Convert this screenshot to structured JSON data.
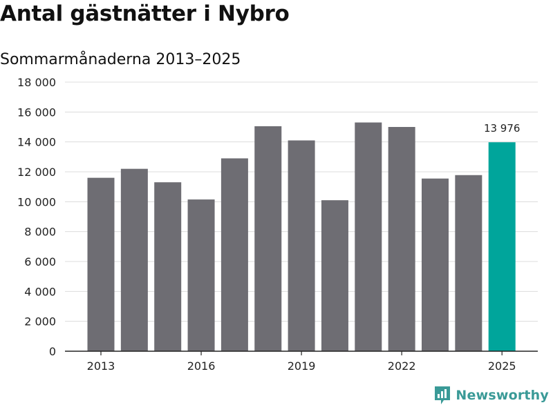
{
  "title": "Antal gästnätter i Nybro",
  "subtitle": "Sommarmånaderna 2013–2025",
  "brand": {
    "name": "Newsworthy",
    "color": "#3a9a97"
  },
  "colors": {
    "bar": "#6e6d73",
    "highlight": "#00a59b",
    "grid": "#dcdcdc",
    "axis": "#222222"
  },
  "chart_data": {
    "type": "bar",
    "title": "Antal gästnätter i Nybro",
    "subtitle": "Sommarmånaderna 2013–2025",
    "categories": [
      "2013",
      "2014",
      "2015",
      "2016",
      "2017",
      "2018",
      "2019",
      "2020",
      "2021",
      "2022",
      "2023",
      "2024",
      "2025"
    ],
    "values": [
      11600,
      12200,
      11300,
      10150,
      12900,
      15050,
      14100,
      10100,
      15300,
      15000,
      11550,
      11780,
      13976
    ],
    "x_tick_labels": [
      "2013",
      "2016",
      "2019",
      "2022",
      "2025"
    ],
    "y_ticks": [
      0,
      2000,
      4000,
      6000,
      8000,
      10000,
      12000,
      14000,
      16000,
      18000
    ],
    "y_tick_labels": [
      "0",
      "2 000",
      "4 000",
      "6 000",
      "8 000",
      "10 000",
      "12 000",
      "14 000",
      "16 000",
      "18 000"
    ],
    "ylim": [
      0,
      18000
    ],
    "grid": true,
    "highlight": {
      "category": "2025",
      "label": "13 976"
    }
  }
}
